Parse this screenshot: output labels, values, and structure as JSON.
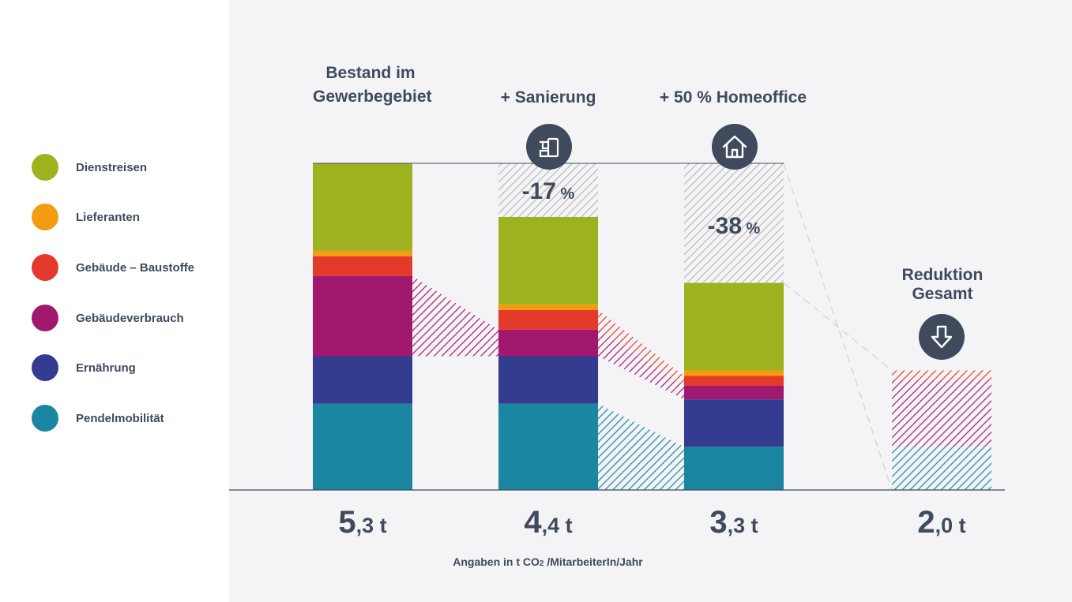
{
  "legend": [
    {
      "key": "dienstreisen",
      "label": "Dienstreisen",
      "color": "#9db21e"
    },
    {
      "key": "lieferanten",
      "label": "Lieferanten",
      "color": "#f39c12"
    },
    {
      "key": "baustoffe",
      "label": "Gebäude – Baustoffe",
      "color": "#e43a2b"
    },
    {
      "key": "verbrauch",
      "label": "Gebäudeverbrauch",
      "color": "#a0196f"
    },
    {
      "key": "ernaehrung",
      "label": "Ernährung",
      "color": "#333c8e"
    },
    {
      "key": "pendel",
      "label": "Pendelmobilität",
      "color": "#1a86a1"
    }
  ],
  "titles": {
    "bestand_line1": "Bestand im",
    "bestand_line2": "Gewerbegebiet",
    "sanierung": "+ Sanierung",
    "homeoffice": "+ 50 % Homeoffice",
    "reduktion_line1": "Reduktion",
    "reduktion_line2": "Gesamt"
  },
  "icons": [
    "heater-icon",
    "house-icon",
    "arrow-down-icon"
  ],
  "totals": [
    {
      "big": "5",
      "small": ",3 t"
    },
    {
      "big": "4",
      "small": ",4 t"
    },
    {
      "big": "3",
      "small": ",3 t"
    },
    {
      "big": "2",
      "small": ",0 t"
    }
  ],
  "percent_labels": [
    {
      "num": "-17",
      "unit": " %"
    },
    {
      "num": "-38",
      "unit": " %"
    }
  ],
  "unit_note": {
    "prefix": "Angaben in t CO",
    "subscript": "2",
    "suffix": " /MitarbeiterIn/Jahr"
  },
  "colors": {
    "hatch_grey": "#b8b8bc",
    "text_dark": "#3f4a5c",
    "panel_bg": "#f4f4f6"
  },
  "chart_data": {
    "type": "bar",
    "stacked": true,
    "categories": [
      "Bestand im Gewerbegebiet",
      "+ Sanierung",
      "+ 50 % Homeoffice",
      "Reduktion Gesamt"
    ],
    "ylim": [
      0,
      5.3
    ],
    "series": [
      {
        "name": "Pendelmobilität",
        "values": [
          1.4,
          1.4,
          0.7,
          0.7
        ]
      },
      {
        "name": "Ernährung",
        "values": [
          0.77,
          0.77,
          0.77,
          0
        ]
      },
      {
        "name": "Gebäudeverbrauch",
        "values": [
          1.3,
          0.43,
          0.22,
          1.08
        ]
      },
      {
        "name": "Gebäude – Baustoffe",
        "values": [
          0.32,
          0.32,
          0.16,
          0.16
        ]
      },
      {
        "name": "Lieferanten",
        "values": [
          0.09,
          0.09,
          0.09,
          0
        ]
      },
      {
        "name": "Dienstreisen",
        "values": [
          1.42,
          1.42,
          1.42,
          0
        ]
      }
    ],
    "totals": [
      5.3,
      4.4,
      3.3,
      2.0
    ],
    "reductions_percent": [
      0,
      -17,
      -38
    ],
    "xlabel": "Angaben in t CO₂/MitarbeiterIn/Jahr"
  }
}
